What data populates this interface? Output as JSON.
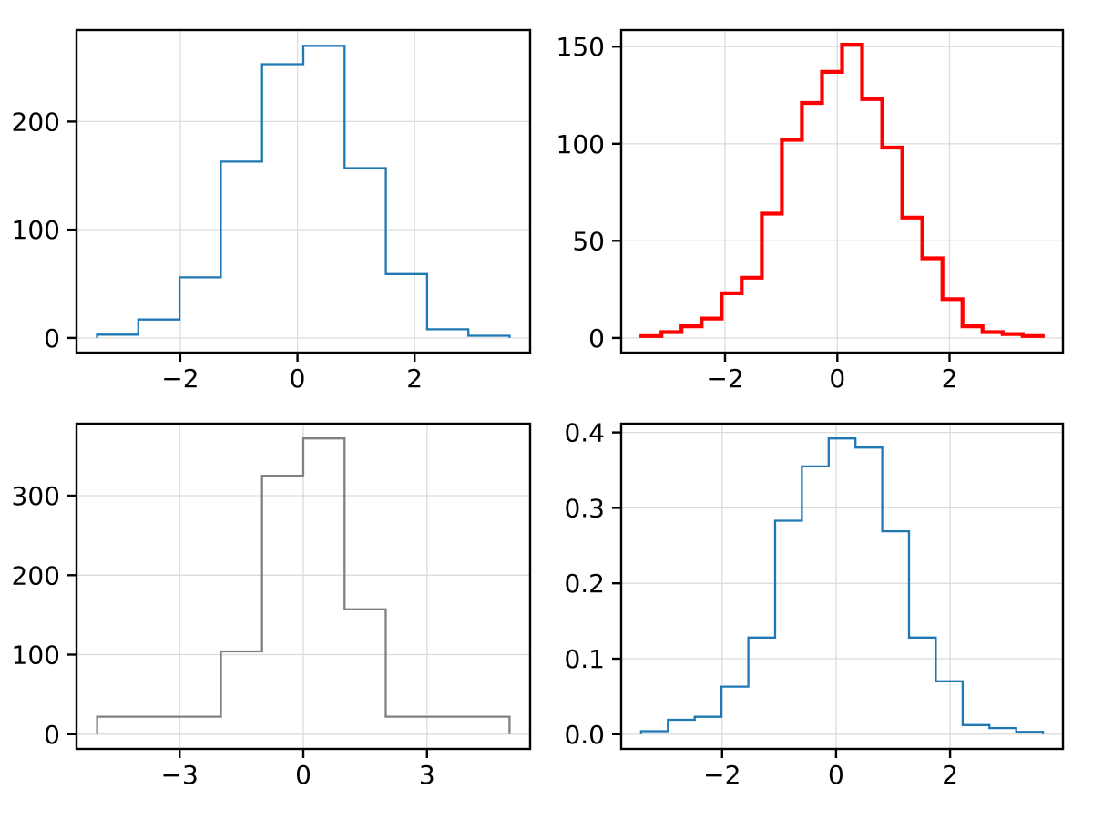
{
  "figure": {
    "background": "#ffffff",
    "grid_color": "#dcdcdc",
    "grid_width": 1.3,
    "spine_color": "#000000",
    "spine_width": 2.4,
    "tick_length": 10,
    "tick_width": 2.4,
    "tick_label_font_size": 28,
    "tick_label_color": "#000000"
  },
  "chart_data": [
    {
      "type": "histogram-step",
      "position": "top-left",
      "value_type": "count",
      "line_color": "#1f77b4",
      "line_width": 2.3,
      "bin_edges": [
        -3.42,
        -2.716,
        -2.012,
        -1.308,
        -0.604,
        0.1,
        0.804,
        1.508,
        2.212,
        2.916,
        3.62
      ],
      "values": [
        3,
        17,
        56,
        163,
        253,
        270,
        157,
        59,
        8,
        2
      ],
      "xlim": [
        -3.77,
        3.97
      ],
      "ylim": [
        -13.6,
        284.6
      ],
      "xticks": [
        -2,
        0,
        2
      ],
      "xtick_labels": [
        "−2",
        "0",
        "2"
      ],
      "yticks": [
        0,
        100,
        200
      ],
      "ytick_labels": [
        "0",
        "100",
        "200"
      ],
      "title": "",
      "xlabel": "",
      "ylabel": "",
      "grid": true,
      "legend": null
    },
    {
      "type": "histogram-step",
      "position": "top-right",
      "value_type": "count",
      "line_color": "#ff0000",
      "line_width": 4.2,
      "bin_edges": [
        -3.49,
        -3.1325,
        -2.775,
        -2.4175,
        -2.06,
        -1.7025,
        -1.345,
        -0.9875,
        -0.63,
        -0.2725,
        0.085,
        0.4425,
        0.8,
        1.1575,
        1.515,
        1.8725,
        2.23,
        2.5875,
        2.945,
        3.3025,
        3.66
      ],
      "values": [
        1,
        3,
        6,
        10,
        23,
        31,
        64,
        102,
        121,
        137,
        151,
        123,
        98,
        62,
        41,
        20,
        6,
        3,
        2,
        1
      ],
      "xlim": [
        -3.85,
        4.02
      ],
      "ylim": [
        -7.55,
        158.55
      ],
      "xticks": [
        -2,
        0,
        2
      ],
      "xtick_labels": [
        "−2",
        "0",
        "2"
      ],
      "yticks": [
        0,
        50,
        100,
        150
      ],
      "ytick_labels": [
        "0",
        "50",
        "100",
        "150"
      ],
      "title": "",
      "xlabel": "",
      "ylabel": "",
      "grid": true,
      "legend": null
    },
    {
      "type": "histogram-step",
      "position": "bottom-left",
      "value_type": "count",
      "line_color": "#808080",
      "line_width": 2.3,
      "bin_edges": [
        -5,
        -2,
        -1,
        0,
        1,
        2,
        5
      ],
      "values": [
        22,
        104,
        325,
        372,
        157,
        22
      ],
      "xlim": [
        -5.5,
        5.5
      ],
      "ylim": [
        -18.6,
        390.6
      ],
      "xticks": [
        -3,
        0,
        3
      ],
      "xtick_labels": [
        "−3",
        "0",
        "3"
      ],
      "yticks": [
        0,
        100,
        200,
        300
      ],
      "ytick_labels": [
        "0",
        "100",
        "200",
        "300"
      ],
      "title": "",
      "xlabel": "",
      "ylabel": "",
      "grid": true,
      "legend": null
    },
    {
      "type": "histogram-step",
      "position": "bottom-right",
      "value_type": "density",
      "line_color": "#1f77b4",
      "line_width": 2.3,
      "bin_edges": [
        -3.42,
        -2.95,
        -2.48,
        -2.01,
        -1.54,
        -1.07,
        -0.6,
        -0.13,
        0.34,
        0.81,
        1.28,
        1.75,
        2.22,
        2.69,
        3.16,
        3.63
      ],
      "values": [
        0.004,
        0.019,
        0.023,
        0.063,
        0.128,
        0.283,
        0.355,
        0.392,
        0.38,
        0.269,
        0.128,
        0.07,
        0.012,
        0.008,
        0.003
      ],
      "xlim": [
        -3.77,
        3.98
      ],
      "ylim": [
        -0.0196,
        0.4116
      ],
      "xticks": [
        -2,
        0,
        2
      ],
      "xtick_labels": [
        "−2",
        "0",
        "2"
      ],
      "yticks": [
        0,
        0.1,
        0.2,
        0.3,
        0.4
      ],
      "ytick_labels": [
        "0.0",
        "0.1",
        "0.2",
        "0.3",
        "0.4"
      ],
      "title": "",
      "xlabel": "",
      "ylabel": "",
      "grid": true,
      "legend": null
    }
  ]
}
